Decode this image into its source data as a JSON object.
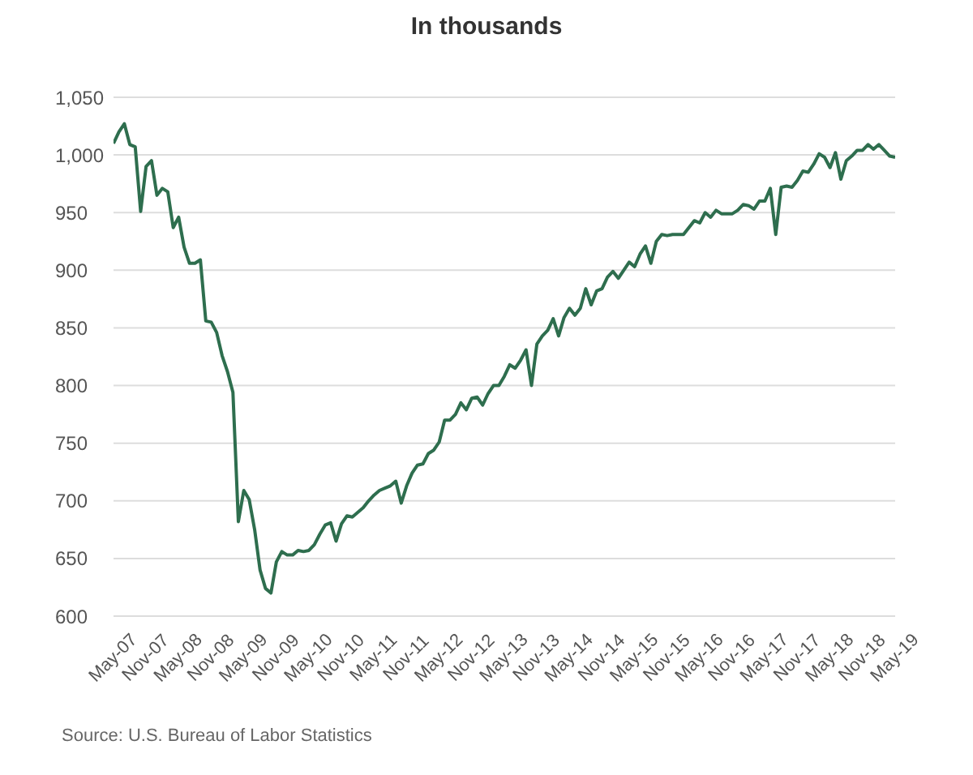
{
  "chart_data": {
    "type": "line",
    "title": "In thousands",
    "annotations": [
      "Source: U.S. Bureau of Labor Statistics"
    ],
    "categories": [
      "May-07",
      null,
      null,
      null,
      null,
      null,
      "Nov-07",
      null,
      null,
      null,
      null,
      null,
      "May-08",
      null,
      null,
      null,
      null,
      null,
      "Nov-08",
      null,
      null,
      null,
      null,
      null,
      "May-09",
      null,
      null,
      null,
      null,
      null,
      "Nov-09",
      null,
      null,
      null,
      null,
      null,
      "May-10",
      null,
      null,
      null,
      null,
      null,
      "Nov-10",
      null,
      null,
      null,
      null,
      null,
      "May-11",
      null,
      null,
      null,
      null,
      null,
      "Nov-11",
      null,
      null,
      null,
      null,
      null,
      "May-12",
      null,
      null,
      null,
      null,
      null,
      "Nov-12",
      null,
      null,
      null,
      null,
      null,
      "May-13",
      null,
      null,
      null,
      null,
      null,
      "Nov-13",
      null,
      null,
      null,
      null,
      null,
      "May-14",
      null,
      null,
      null,
      null,
      null,
      "Nov-14",
      null,
      null,
      null,
      null,
      null,
      "May-15",
      null,
      null,
      null,
      null,
      null,
      "Nov-15",
      null,
      null,
      null,
      null,
      null,
      "May-16",
      null,
      null,
      null,
      null,
      null,
      "Nov-16",
      null,
      null,
      null,
      null,
      null,
      "May-17",
      null,
      null,
      null,
      null,
      null,
      "Nov-17",
      null,
      null,
      null,
      null,
      null,
      "May-18",
      null,
      null,
      null,
      null,
      null,
      "Nov-18",
      null,
      null,
      null,
      null,
      null,
      "May-19"
    ],
    "series": [
      {
        "color": "#2e6e4e",
        "values": [
          1010,
          1020,
          1027,
          1009,
          1007,
          951,
          990,
          995,
          965,
          971,
          968,
          937,
          946,
          920,
          906,
          906,
          909,
          856,
          855,
          846,
          826,
          812,
          794,
          682,
          709,
          701,
          675,
          640,
          624,
          620,
          647,
          656,
          653,
          653,
          657,
          656,
          657,
          662,
          671,
          679,
          681,
          665,
          680,
          687,
          686,
          690,
          694,
          700,
          705,
          709,
          711,
          713,
          717,
          698,
          713,
          724,
          731,
          732,
          741,
          744,
          751,
          770,
          770,
          775,
          785,
          779,
          789,
          790,
          783,
          793,
          800,
          800,
          808,
          818,
          815,
          822,
          831,
          800,
          836,
          843,
          848,
          858,
          843,
          859,
          867,
          861,
          867,
          884,
          870,
          882,
          884,
          894,
          899,
          893,
          900,
          907,
          903,
          914,
          921,
          906,
          925,
          931,
          930,
          931,
          931,
          931,
          937,
          943,
          941,
          950,
          946,
          952,
          949,
          949,
          949,
          952,
          957,
          956,
          953,
          960,
          960,
          971,
          931,
          972,
          973,
          972,
          978,
          986,
          985,
          992,
          1001,
          998,
          989,
          1002,
          979,
          995,
          999,
          1004,
          1004,
          1009,
          1005,
          1009,
          1004,
          999,
          998
        ]
      }
    ],
    "ylim": [
      600,
      1050
    ],
    "yticks": [
      {
        "value": 600,
        "label": "600"
      },
      {
        "value": 650,
        "label": "650"
      },
      {
        "value": 700,
        "label": "700"
      },
      {
        "value": 750,
        "label": "750"
      },
      {
        "value": 800,
        "label": "800"
      },
      {
        "value": 850,
        "label": "850"
      },
      {
        "value": 900,
        "label": "900"
      },
      {
        "value": 950,
        "label": "950"
      },
      {
        "value": 1000,
        "label": "1,000"
      },
      {
        "value": 1050,
        "label": "1,050"
      }
    ],
    "grid": "y",
    "marker": "none",
    "line_style": "solid"
  }
}
